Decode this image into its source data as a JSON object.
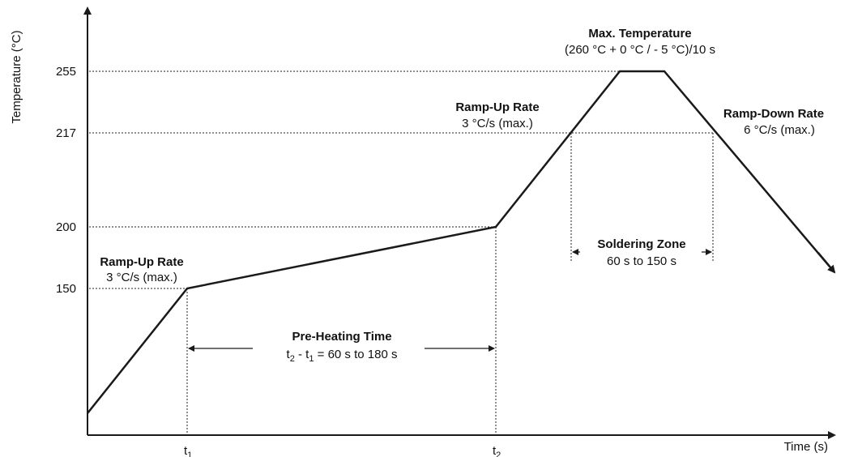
{
  "axes": {
    "y_label": "Temperature (°C)",
    "x_label": "Time (s)",
    "y_ticks": [
      "255",
      "217",
      "200",
      "150"
    ],
    "x_ticks": [
      {
        "base": "t",
        "sub": "1"
      },
      {
        "base": "t",
        "sub": "2"
      }
    ]
  },
  "annotations": {
    "ramp_up_1": {
      "title": "Ramp-Up Rate",
      "value": "3 °C/s (max.)"
    },
    "ramp_up_2": {
      "title": "Ramp-Up Rate",
      "value": "3 °C/s (max.)"
    },
    "max_temp": {
      "title": "Max. Temperature",
      "value": "(260 °C + 0 °C / - 5 °C)/10 s"
    },
    "ramp_down": {
      "title": "Ramp-Down Rate",
      "value": "6 °C/s (max.)"
    },
    "soldering": {
      "title": "Soldering Zone",
      "value": "60 s to 150 s"
    },
    "preheat": {
      "title": "Pre-Heating Time",
      "t2": "t",
      "t2_sub": "2",
      "dash": " - ",
      "t1": "t",
      "t1_sub": "1",
      "rest": " = 60 s to 180 s"
    }
  },
  "colors": {
    "line": "#1a1a1a",
    "text": "#111111"
  }
}
